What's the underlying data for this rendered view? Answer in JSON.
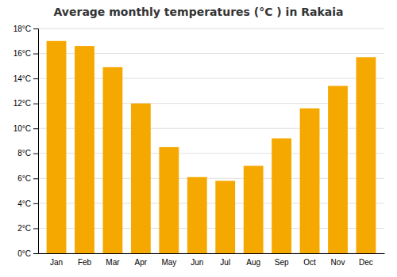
{
  "chart_data": {
    "type": "bar",
    "title": "Average monthly temperatures (°C ) in Rakaia",
    "categories": [
      "Jan",
      "Feb",
      "Mar",
      "Apr",
      "May",
      "Jun",
      "Jul",
      "Aug",
      "Sep",
      "Oct",
      "Nov",
      "Dec"
    ],
    "values": [
      17.0,
      16.6,
      14.9,
      12.0,
      8.5,
      6.1,
      5.8,
      7.0,
      9.2,
      11.6,
      13.4,
      15.7
    ],
    "color": "#F5A800",
    "ylim": [
      0,
      18
    ],
    "yticks": [
      {
        "value": 0,
        "label": "0°C"
      },
      {
        "value": 2,
        "label": "2°C"
      },
      {
        "value": 4,
        "label": "4°C"
      },
      {
        "value": 6,
        "label": "6°C"
      },
      {
        "value": 8,
        "label": "8°C"
      },
      {
        "value": 10,
        "label": "10°C"
      },
      {
        "value": 12,
        "label": "12°C"
      },
      {
        "value": 14,
        "label": "14°C"
      },
      {
        "value": 16,
        "label": "16°C"
      },
      {
        "value": 18,
        "label": "18°C"
      }
    ],
    "grid": true
  }
}
